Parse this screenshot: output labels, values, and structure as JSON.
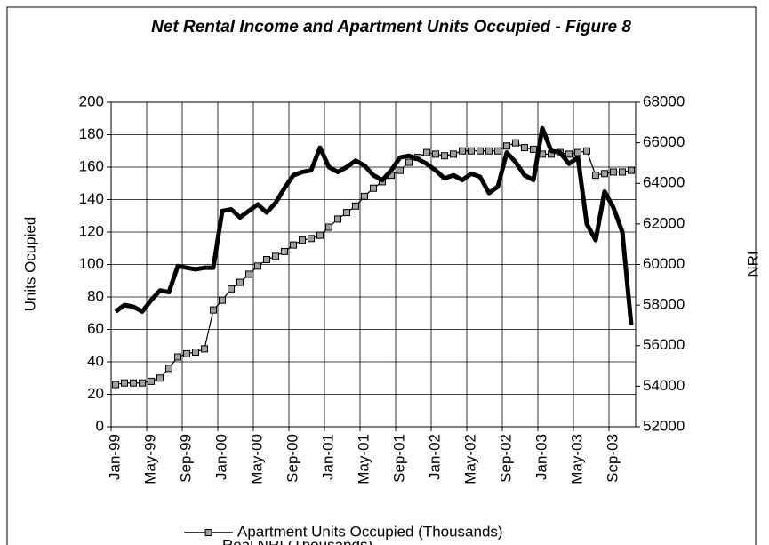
{
  "chart_data": {
    "type": "line",
    "title": "Net Rental Income and Apartment Units Occupied - Figure 8",
    "y_label": "Units Ocupied",
    "y2_label": "NRI",
    "categories": [
      "Jan-99",
      null,
      null,
      null,
      "May-99",
      null,
      null,
      null,
      "Sep-99",
      null,
      null,
      null,
      "Jan-00",
      null,
      null,
      null,
      "May-00",
      null,
      null,
      null,
      "Sep-00",
      null,
      null,
      null,
      "Jan-01",
      null,
      null,
      null,
      "May-01",
      null,
      null,
      null,
      "Sep-01",
      null,
      null,
      null,
      "Jan-02",
      null,
      null,
      null,
      "May-02",
      null,
      null,
      null,
      "Sep-02",
      null,
      null,
      null,
      "Jan-03",
      null,
      null,
      null,
      "May-03",
      null,
      null,
      null,
      "Sep-03",
      null,
      null
    ],
    "series": [
      {
        "name": "Apartment Units Occupied (Thousands)",
        "color": "#000000",
        "marker_color": "#a0a0a0",
        "axis": "y",
        "values": [
          26,
          27,
          27,
          27,
          28,
          30,
          36,
          43,
          45,
          46,
          48,
          72,
          78,
          85,
          89,
          94,
          99,
          103,
          105,
          108,
          112,
          115,
          116,
          118,
          123,
          128,
          132,
          136,
          142,
          147,
          151,
          155,
          158,
          163,
          166,
          169,
          168,
          167,
          168,
          170,
          170,
          170,
          170,
          170,
          173,
          175,
          172,
          171,
          168,
          168,
          169,
          168,
          169,
          170,
          155,
          156,
          157,
          157,
          158
        ]
      },
      {
        "name": "Real NRI (Thousands)",
        "color": "#000000",
        "axis": "y2",
        "values": [
          57680,
          58000,
          57920,
          57680,
          58240,
          58720,
          58640,
          59920,
          59840,
          59760,
          59840,
          59840,
          62640,
          62720,
          62320,
          62640,
          62960,
          62560,
          63040,
          63760,
          64400,
          64560,
          64640,
          65760,
          64800,
          64560,
          64800,
          65120,
          64880,
          64400,
          64160,
          64640,
          65280,
          65360,
          65200,
          64960,
          64640,
          64240,
          64400,
          64160,
          64480,
          64320,
          63520,
          63840,
          65520,
          65040,
          64400,
          64160,
          66720,
          65600,
          65520,
          64960,
          65280,
          62000,
          61200,
          63600,
          62800,
          61600,
          57040
        ]
      }
    ],
    "ylim": [
      0,
      200
    ],
    "yticks": [
      0,
      20,
      40,
      60,
      80,
      100,
      120,
      140,
      160,
      180,
      200
    ],
    "y2lim": [
      52000,
      68000
    ],
    "y2ticks": [
      52000,
      54000,
      56000,
      58000,
      60000,
      62000,
      64000,
      66000,
      68000
    ],
    "grid": true
  }
}
